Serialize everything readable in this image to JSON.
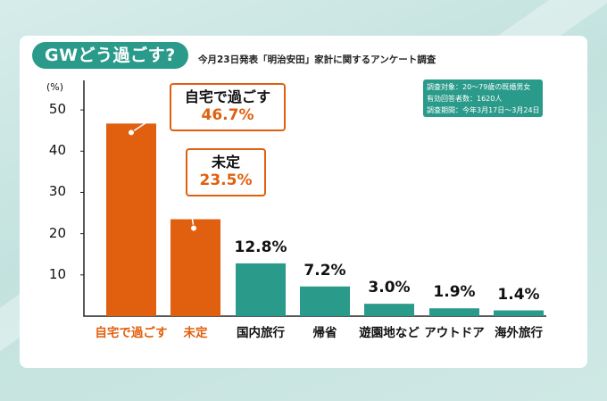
{
  "title": "GWどう過ごす?",
  "subtitle": "今月23日発表「明治安田」家計に関するアンケート調査",
  "info": [
    "調査対象：20～79歳の既婚男女",
    "有効回答者数：1620人",
    "調査期間：今年3月17日～3月24日"
  ],
  "colors": {
    "orange": "#e0600f",
    "teal": "#2a9a8a"
  },
  "chart_data": {
    "type": "bar",
    "categories": [
      "自宅で過ごす",
      "未定",
      "国内旅行",
      "帰省",
      "遊園地など",
      "アウトドア",
      "海外旅行"
    ],
    "values": [
      46.7,
      23.5,
      12.8,
      7.2,
      3.0,
      1.9,
      1.4
    ],
    "value_labels": [
      "46.7%",
      "23.5%",
      "12.8%",
      "7.2%",
      "3.0%",
      "1.9%",
      "1.4%"
    ],
    "bar_colors": [
      "#e0600f",
      "#e0600f",
      "#2a9a8a",
      "#2a9a8a",
      "#2a9a8a",
      "#2a9a8a",
      "#2a9a8a"
    ],
    "ylabel": "(%)",
    "ylim": [
      0,
      55
    ],
    "yticks": [
      10,
      20,
      30,
      40,
      50
    ],
    "grid": false
  }
}
